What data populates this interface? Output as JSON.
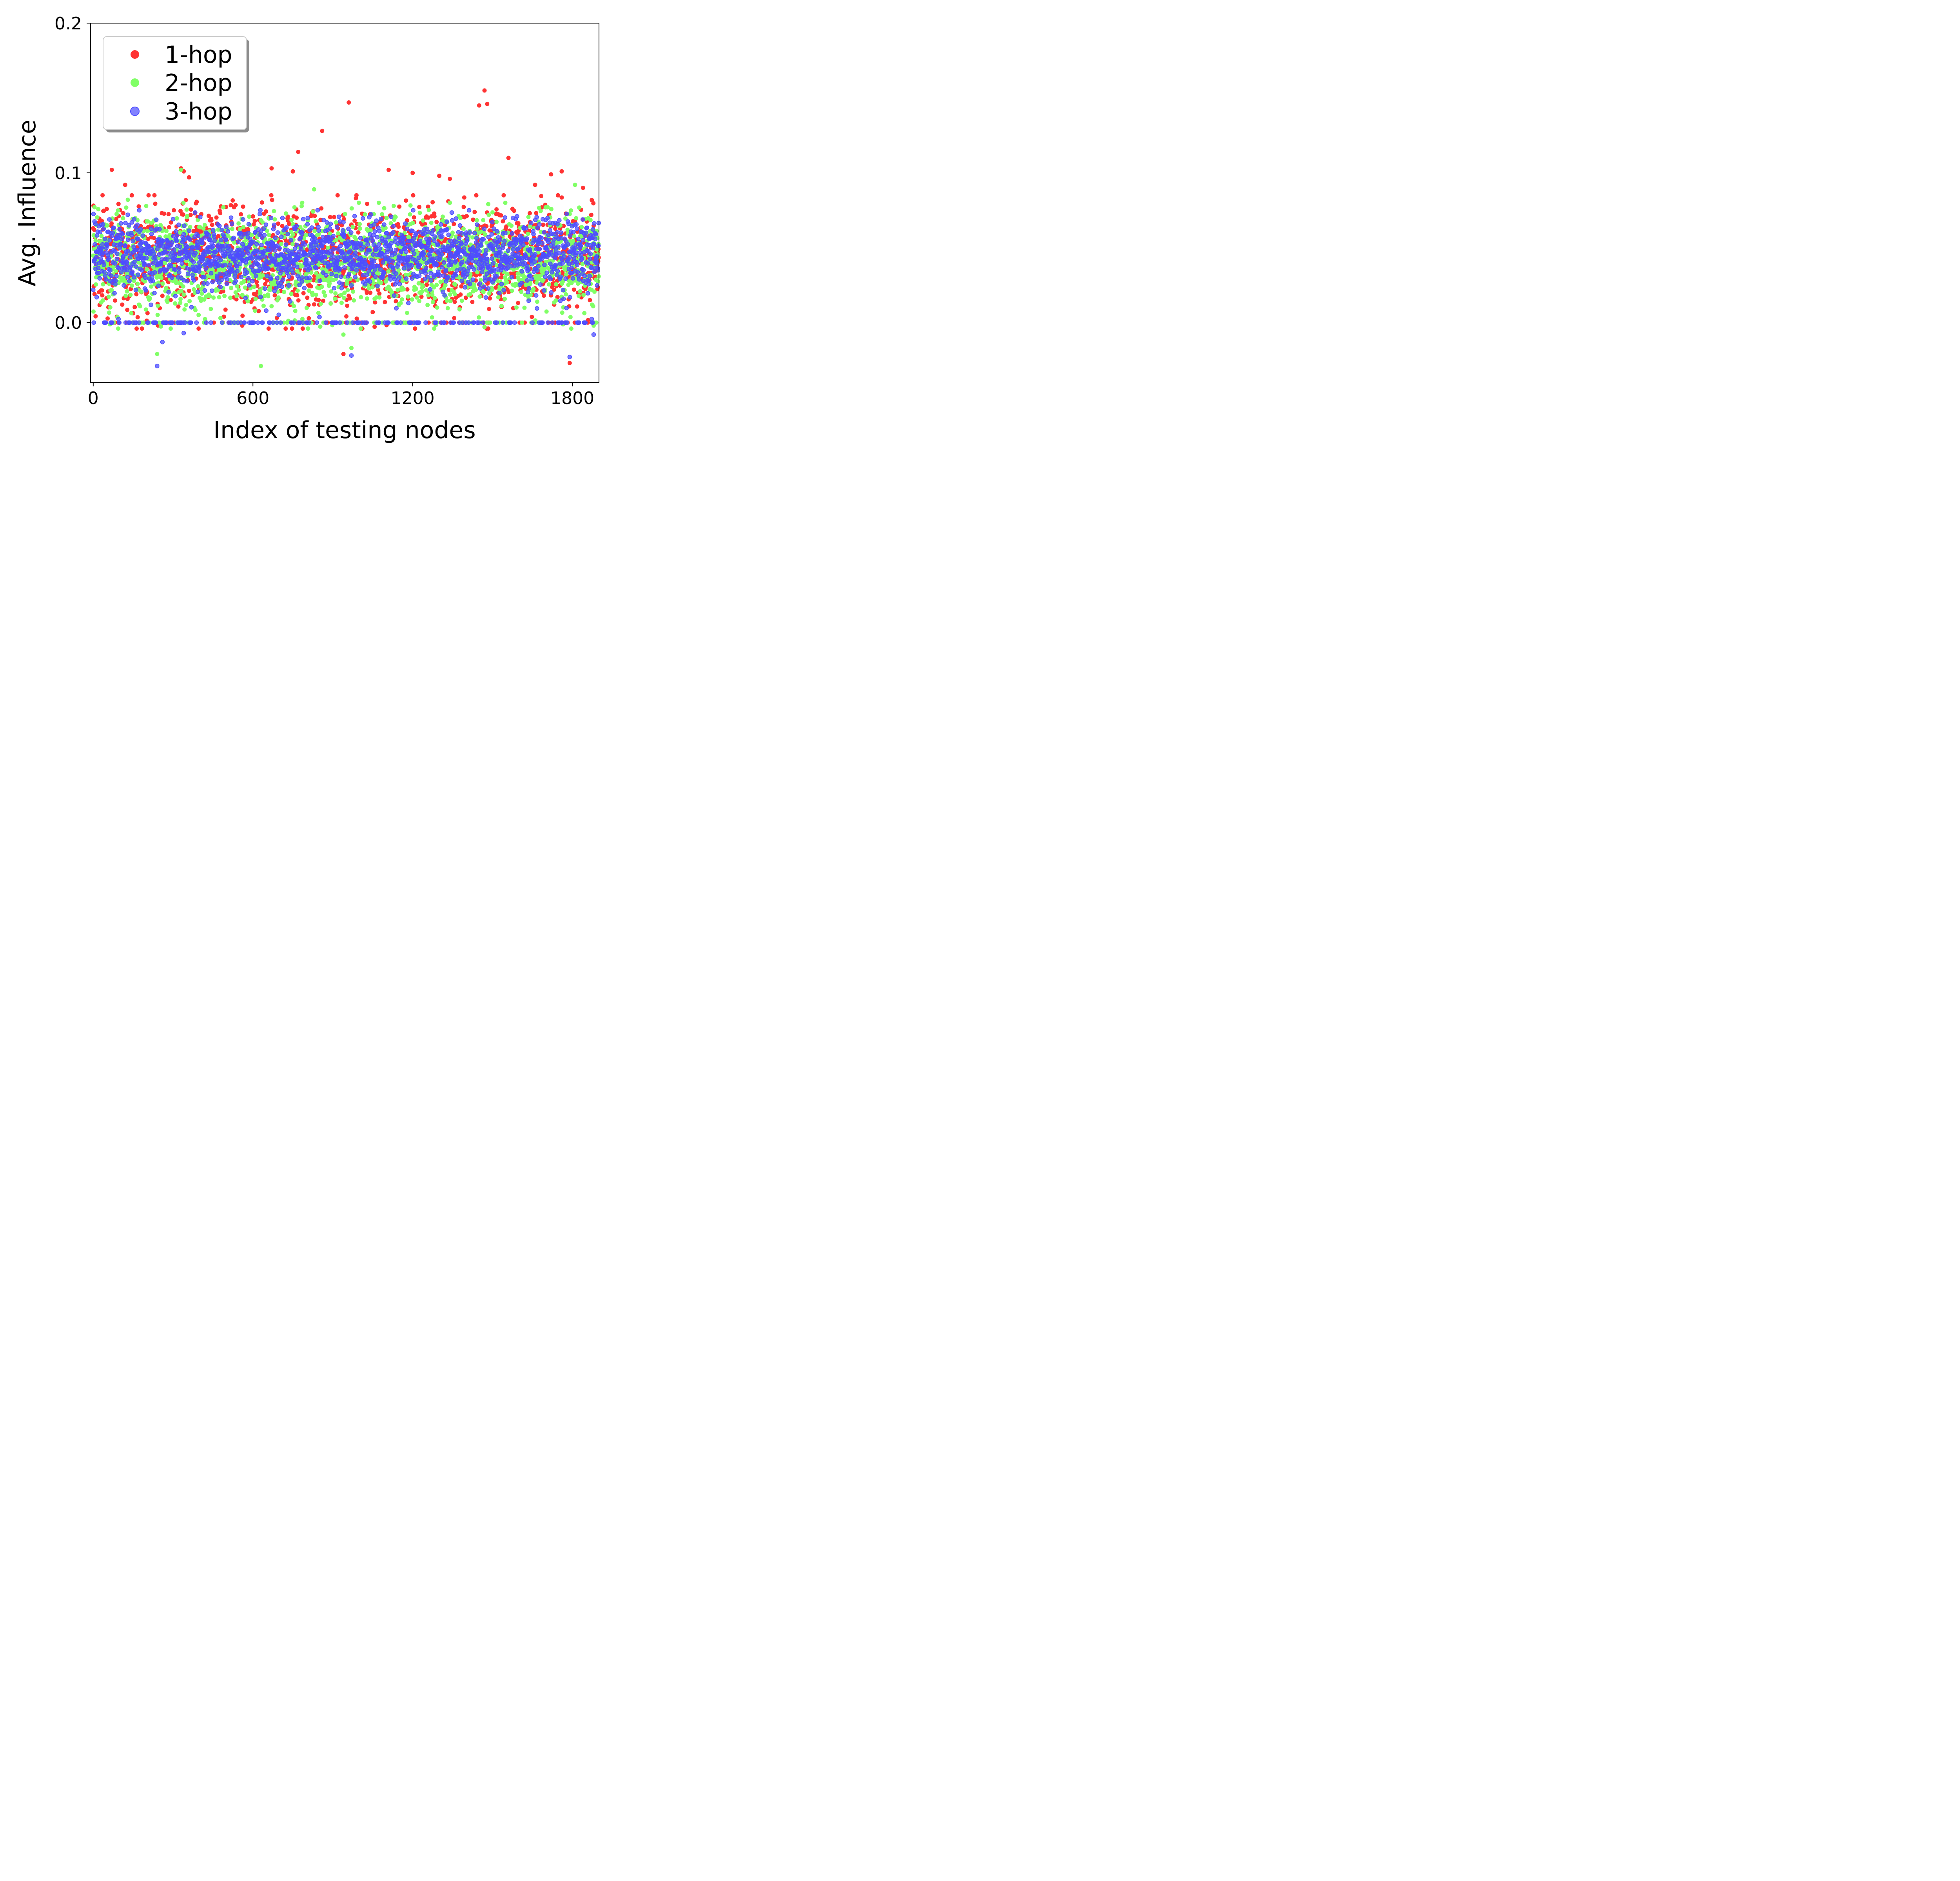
{
  "chart_data": {
    "type": "scatter",
    "title": "",
    "xlabel": "Index of testing nodes",
    "ylabel": "Avg. Influence",
    "xlim": [
      -10,
      1900
    ],
    "ylim": [
      -0.04,
      0.2
    ],
    "xticks": [
      0,
      600,
      1200,
      1800
    ],
    "xtick_labels": [
      "0",
      "600",
      "1200",
      "1800"
    ],
    "yticks": [
      0.0,
      0.1,
      0.2
    ],
    "ytick_labels": [
      "0.0",
      "0.1",
      "0.2"
    ],
    "grid": false,
    "legend_position": "top-left",
    "n_points_per_series": 1900,
    "series": [
      {
        "name": "1-hop",
        "color": "#ff3333",
        "typical_range": [
          0.0,
          0.075
        ],
        "highlight_points": [
          {
            "x": 70,
            "y": 0.102
          },
          {
            "x": 120,
            "y": 0.092
          },
          {
            "x": 330,
            "y": 0.103
          },
          {
            "x": 340,
            "y": 0.101
          },
          {
            "x": 360,
            "y": 0.097
          },
          {
            "x": 670,
            "y": 0.103
          },
          {
            "x": 750,
            "y": 0.101
          },
          {
            "x": 770,
            "y": 0.114
          },
          {
            "x": 860,
            "y": 0.128
          },
          {
            "x": 960,
            "y": 0.147
          },
          {
            "x": 1110,
            "y": 0.102
          },
          {
            "x": 1200,
            "y": 0.1
          },
          {
            "x": 1450,
            "y": 0.145
          },
          {
            "x": 1470,
            "y": 0.155
          },
          {
            "x": 1480,
            "y": 0.146
          },
          {
            "x": 1560,
            "y": 0.11
          },
          {
            "x": 1720,
            "y": 0.099
          },
          {
            "x": 1760,
            "y": 0.101
          },
          {
            "x": 940,
            "y": -0.021
          },
          {
            "x": 1790,
            "y": -0.027
          },
          {
            "x": 560,
            "y": -0.002
          },
          {
            "x": 1300,
            "y": 0.098
          },
          {
            "x": 1340,
            "y": 0.096
          },
          {
            "x": 1840,
            "y": 0.09
          },
          {
            "x": 1660,
            "y": 0.092
          }
        ]
      },
      {
        "name": "2-hop",
        "color": "#80ff66",
        "typical_range": [
          0.0,
          0.07
        ],
        "highlight_points": [
          {
            "x": 330,
            "y": 0.102
          },
          {
            "x": 830,
            "y": 0.089
          },
          {
            "x": 1810,
            "y": 0.092
          },
          {
            "x": 240,
            "y": -0.021
          },
          {
            "x": 630,
            "y": -0.029
          },
          {
            "x": 940,
            "y": -0.008
          },
          {
            "x": 970,
            "y": -0.017
          },
          {
            "x": 1470,
            "y": -0.003
          },
          {
            "x": 1880,
            "y": -0.002
          },
          {
            "x": 130,
            "y": 0.082
          },
          {
            "x": 1700,
            "y": 0.077
          }
        ]
      },
      {
        "name": "3-hop",
        "color": "#4d4dff",
        "typical_range": [
          0.0,
          0.065
        ],
        "highlight_points": [
          {
            "x": 240,
            "y": -0.029
          },
          {
            "x": 260,
            "y": -0.013
          },
          {
            "x": 340,
            "y": -0.007
          },
          {
            "x": 970,
            "y": -0.022
          },
          {
            "x": 1790,
            "y": -0.023
          },
          {
            "x": 1880,
            "y": -0.008
          },
          {
            "x": 130,
            "y": 0.072
          },
          {
            "x": 940,
            "y": 0.067
          }
        ]
      }
    ]
  }
}
